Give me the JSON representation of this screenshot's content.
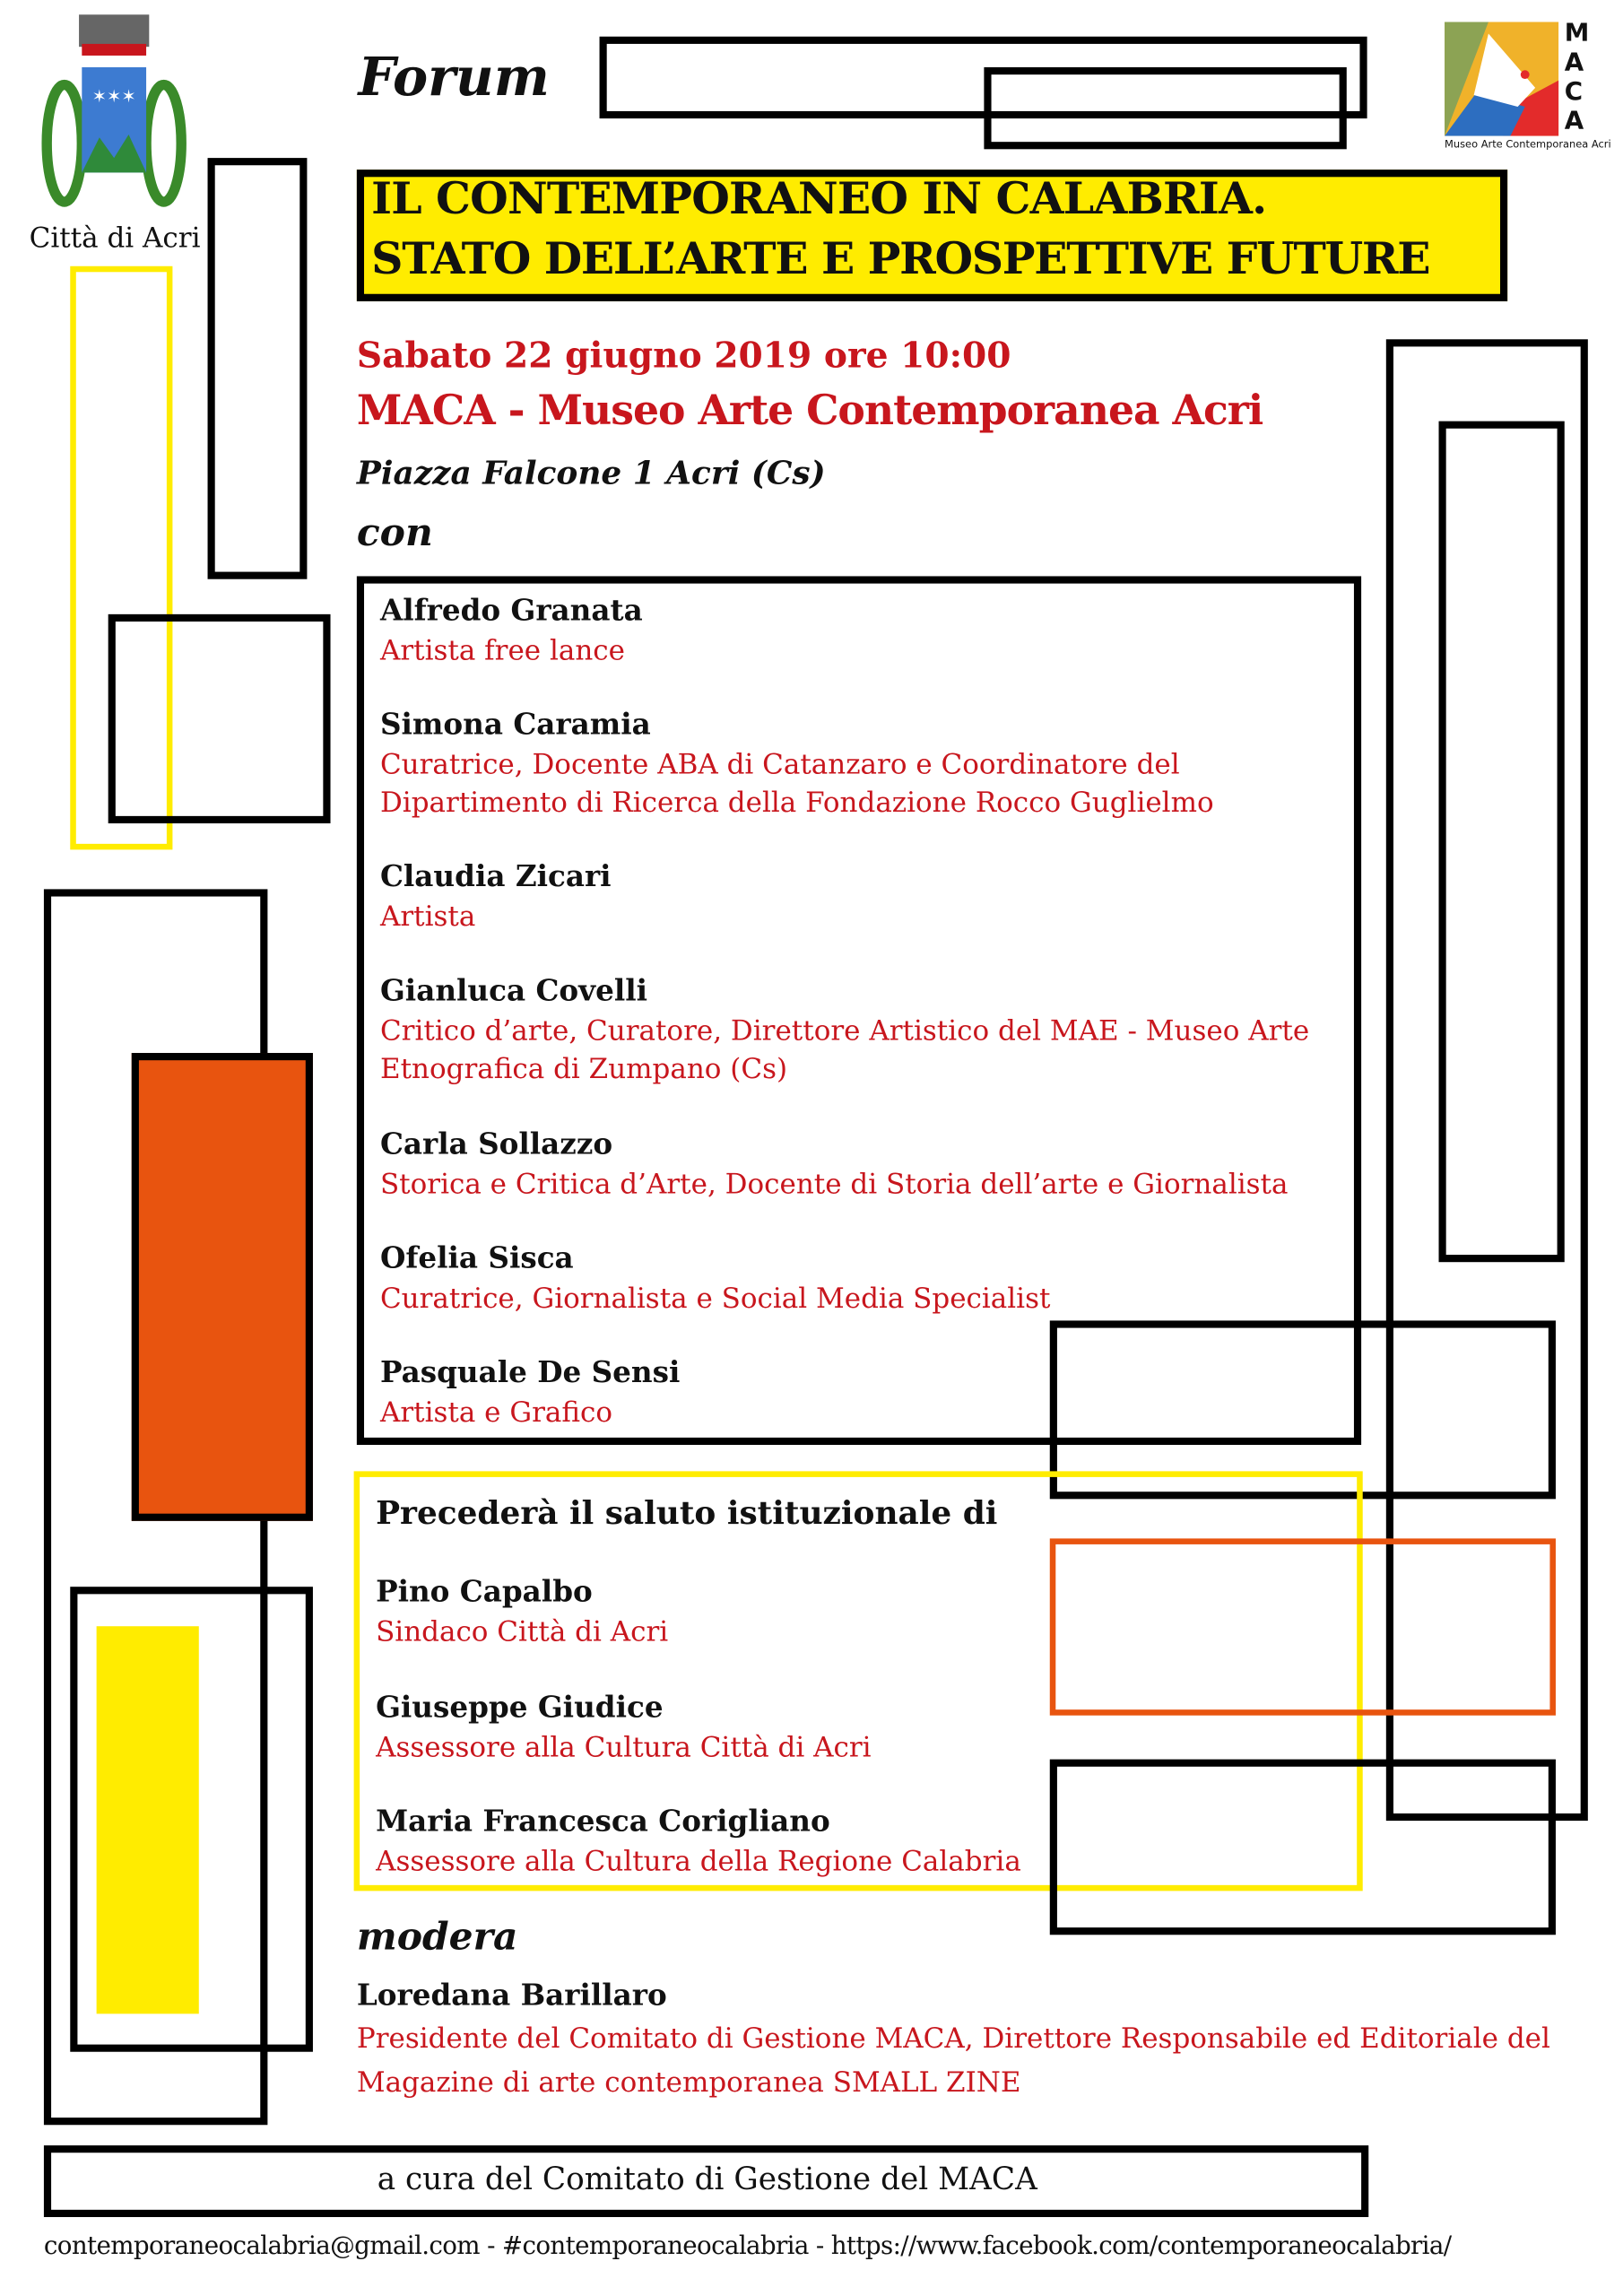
{
  "header": {
    "forum": "Forum",
    "title_line1": "IL CONTEMPORANEO IN CALABRIA.",
    "title_line2": "STATO DELL’ARTE E PROSPETTIVE FUTURE"
  },
  "logos": {
    "city": "Città di Acri",
    "maca_letters": [
      "M",
      "A",
      "C",
      "A"
    ],
    "maca_caption": "Museo Arte Contemporanea Acri"
  },
  "event": {
    "date": "Sabato 22 giugno 2019 ore 10:00",
    "venue": "MACA - Museo Arte Contemporanea Acri",
    "address": "Piazza Falcone 1 Acri (Cs)",
    "with_label": "con"
  },
  "speakers": [
    {
      "name": "Alfredo Granata",
      "role": [
        "Artista free lance"
      ]
    },
    {
      "name": "Simona Caramia",
      "role": [
        "Curatrice, Docente ABA di Catanzaro e Coordinatore del",
        "Dipartimento di Ricerca della Fondazione Rocco Guglielmo"
      ]
    },
    {
      "name": "Claudia Zicari",
      "role": [
        "Artista"
      ]
    },
    {
      "name": "Gianluca Covelli",
      "role": [
        "Critico d’arte, Curatore, Direttore Artistico del MAE - Museo Arte",
        "Etnografica di Zumpano (Cs)"
      ]
    },
    {
      "name": "Carla Sollazzo",
      "role": [
        "Storica e Critica d’Arte, Docente di Storia dell’arte e Giornalista"
      ]
    },
    {
      "name": "Ofelia Sisca",
      "role": [
        "Curatrice, Giornalista e Social Media Specialist"
      ]
    },
    {
      "name": "Pasquale De Sensi",
      "role": [
        "Artista e Grafico"
      ]
    }
  ],
  "greetings": {
    "label": "Precederà il saluto istituzionale di",
    "people": [
      {
        "name": "Pino Capalbo",
        "role": "Sindaco Città di Acri"
      },
      {
        "name": "Giuseppe Giudice",
        "role": "Assessore alla Cultura Città di Acri"
      },
      {
        "name": "Maria Francesca Corigliano",
        "role": "Assessore alla Cultura della Regione Calabria"
      }
    ]
  },
  "moderator": {
    "label": "modera",
    "name": "Loredana Barillaro",
    "role": [
      "Presidente del Comitato di Gestione MACA, Direttore Responsabile ed Editoriale del",
      "Magazine di arte contemporanea SMALL ZINE"
    ]
  },
  "footer": {
    "curated_by": "a cura del Comitato di Gestione del MACA",
    "contacts": "contemporaneocalabria@gmail.com - #contemporaneocalabria - https://www.facebook.com/contemporaneocalabria/"
  },
  "colors": {
    "red_text": "#c8161d",
    "yellow": "#ffec00",
    "orange": "#e8540f",
    "black": "#000000"
  }
}
